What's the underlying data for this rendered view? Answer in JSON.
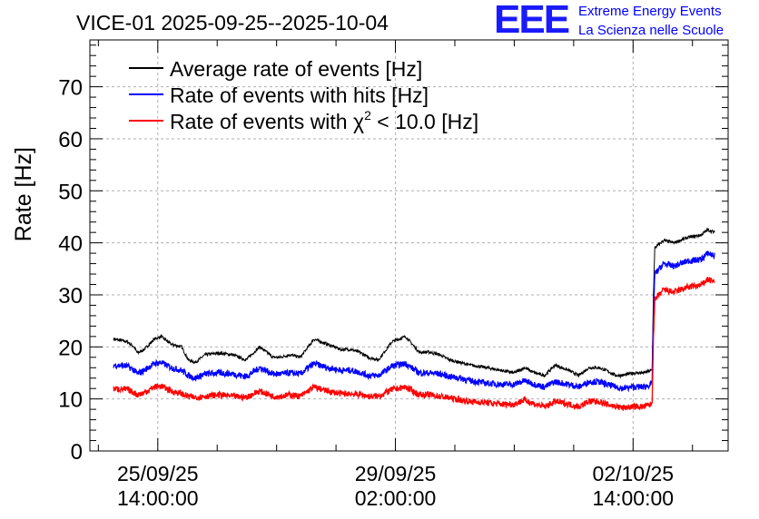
{
  "chart_data": {
    "type": "line",
    "title": "VICE-01 2025-09-25--2025-10-04",
    "ylabel": "Rate [Hz]",
    "xlabel": "",
    "ylim": [
      0,
      79
    ],
    "yticks": [
      0,
      10,
      20,
      30,
      40,
      50,
      60,
      70
    ],
    "xlim_days": [
      -1.0,
      8.4
    ],
    "x_unit": "days since 25/09/25 14:00:00",
    "xtick_labels": [
      {
        "date": "25/09/25",
        "time": "14:00:00",
        "day": 0
      },
      {
        "date": "29/09/25",
        "time": "02:00:00",
        "day": 3.5
      },
      {
        "date": "02/10/25",
        "time": "14:00:00",
        "day": 7
      }
    ],
    "grid": true,
    "legend_position": "top-left",
    "series": [
      {
        "name": "Average rate of events [Hz]",
        "color": "#000000",
        "noise": 0.3,
        "x": [
          -0.65,
          -0.45,
          -0.35,
          -0.3,
          -0.2,
          -0.05,
          0.05,
          0.2,
          0.35,
          0.45,
          0.55,
          0.7,
          0.9,
          1.1,
          1.3,
          1.5,
          1.7,
          1.8,
          1.95,
          2.1,
          2.3,
          2.5,
          2.7,
          2.85,
          3.0,
          3.1,
          3.25,
          3.45,
          3.65,
          3.85,
          4.0,
          4.15,
          4.3,
          4.45,
          4.6,
          4.85,
          5.05,
          5.25,
          5.4,
          5.55,
          5.7,
          5.85,
          6.05,
          6.2,
          6.35,
          6.5,
          6.6,
          6.75,
          6.85,
          7.0,
          7.15,
          7.28,
          7.3,
          7.32,
          7.45,
          7.6,
          7.8,
          8.0,
          8.1,
          8.2
        ],
        "y": [
          21.5,
          21.0,
          20.0,
          18.8,
          19.5,
          21.5,
          22.0,
          20.5,
          20.0,
          17.5,
          17.0,
          18.5,
          18.8,
          18.5,
          17.5,
          20.0,
          18.0,
          18.0,
          18.5,
          18.0,
          21.5,
          20.5,
          19.5,
          19.5,
          18.8,
          18.0,
          17.5,
          21.0,
          22.0,
          19.0,
          19.0,
          18.5,
          17.5,
          17.0,
          16.5,
          16.0,
          15.5,
          15.0,
          16.0,
          15.0,
          14.5,
          16.5,
          15.5,
          14.5,
          16.0,
          16.0,
          15.5,
          14.5,
          14.5,
          15.0,
          15.0,
          15.5,
          30.0,
          39.0,
          40.5,
          40.0,
          41.0,
          41.5,
          42.5,
          42.0
        ]
      },
      {
        "name": "Rate of events with hits [Hz]",
        "color": "#0000ff",
        "noise": 0.6,
        "x": [
          -0.65,
          -0.45,
          -0.35,
          -0.3,
          -0.2,
          -0.05,
          0.05,
          0.2,
          0.35,
          0.45,
          0.55,
          0.7,
          0.9,
          1.1,
          1.3,
          1.5,
          1.7,
          1.8,
          1.95,
          2.1,
          2.3,
          2.5,
          2.7,
          2.85,
          3.0,
          3.1,
          3.25,
          3.45,
          3.65,
          3.85,
          4.0,
          4.15,
          4.3,
          4.45,
          4.6,
          4.85,
          5.05,
          5.25,
          5.4,
          5.55,
          5.7,
          5.85,
          6.05,
          6.2,
          6.35,
          6.5,
          6.6,
          6.75,
          6.85,
          7.0,
          7.15,
          7.28,
          7.3,
          7.32,
          7.45,
          7.6,
          7.8,
          8.0,
          8.1,
          8.2
        ],
        "y": [
          16.5,
          16.3,
          15.5,
          14.8,
          15.5,
          16.8,
          17.0,
          16.0,
          15.5,
          14.5,
          14.0,
          14.8,
          15.0,
          14.8,
          14.3,
          16.0,
          14.8,
          14.8,
          15.0,
          14.8,
          16.8,
          16.0,
          15.5,
          15.5,
          15.0,
          14.5,
          14.5,
          16.3,
          16.8,
          15.0,
          15.0,
          14.8,
          14.3,
          14.0,
          13.5,
          13.0,
          12.8,
          12.8,
          13.5,
          12.8,
          12.3,
          13.3,
          12.8,
          12.3,
          13.3,
          13.3,
          12.8,
          12.3,
          12.0,
          12.3,
          12.3,
          12.8,
          26.0,
          34.0,
          36.0,
          35.5,
          36.5,
          36.8,
          38.0,
          37.5
        ]
      },
      {
        "name": "Rate of events with χ² < 10.0 [Hz]",
        "color": "#ff0000",
        "noise": 0.6,
        "x": [
          -0.65,
          -0.45,
          -0.35,
          -0.3,
          -0.2,
          -0.05,
          0.05,
          0.2,
          0.35,
          0.45,
          0.55,
          0.7,
          0.9,
          1.1,
          1.3,
          1.5,
          1.7,
          1.8,
          1.95,
          2.1,
          2.3,
          2.5,
          2.7,
          2.85,
          3.0,
          3.1,
          3.25,
          3.45,
          3.65,
          3.85,
          4.0,
          4.15,
          4.3,
          4.45,
          4.6,
          4.85,
          5.05,
          5.25,
          5.4,
          5.55,
          5.7,
          5.85,
          6.05,
          6.2,
          6.35,
          6.5,
          6.6,
          6.75,
          6.85,
          7.0,
          7.15,
          7.28,
          7.3,
          7.32,
          7.45,
          7.6,
          7.8,
          8.0,
          8.1,
          8.2
        ],
        "y": [
          12.0,
          11.8,
          11.2,
          10.8,
          11.2,
          12.3,
          12.5,
          11.5,
          11.0,
          10.5,
          10.3,
          10.5,
          10.8,
          10.5,
          10.3,
          11.5,
          10.5,
          10.5,
          10.8,
          10.5,
          12.3,
          11.5,
          11.0,
          11.0,
          10.8,
          10.5,
          10.5,
          11.8,
          12.3,
          10.8,
          10.8,
          10.5,
          10.2,
          9.8,
          9.5,
          9.3,
          9.0,
          9.0,
          9.8,
          9.0,
          8.5,
          9.5,
          9.0,
          8.5,
          9.5,
          9.5,
          9.0,
          8.5,
          8.3,
          8.5,
          8.5,
          9.0,
          22.0,
          29.0,
          31.0,
          30.5,
          31.5,
          31.8,
          33.0,
          32.5
        ]
      }
    ]
  },
  "logo": {
    "mark": "EEE",
    "line1": "Extreme Energy Events",
    "line2": "La Scienza nelle Scuole",
    "color": "#0000ff"
  },
  "legend_parts": {
    "chi2_prefix": "Rate of events with ",
    "chi_symbol": "χ",
    "chi_sup": "2",
    "chi2_suffix": " < 10.0 [Hz]"
  }
}
